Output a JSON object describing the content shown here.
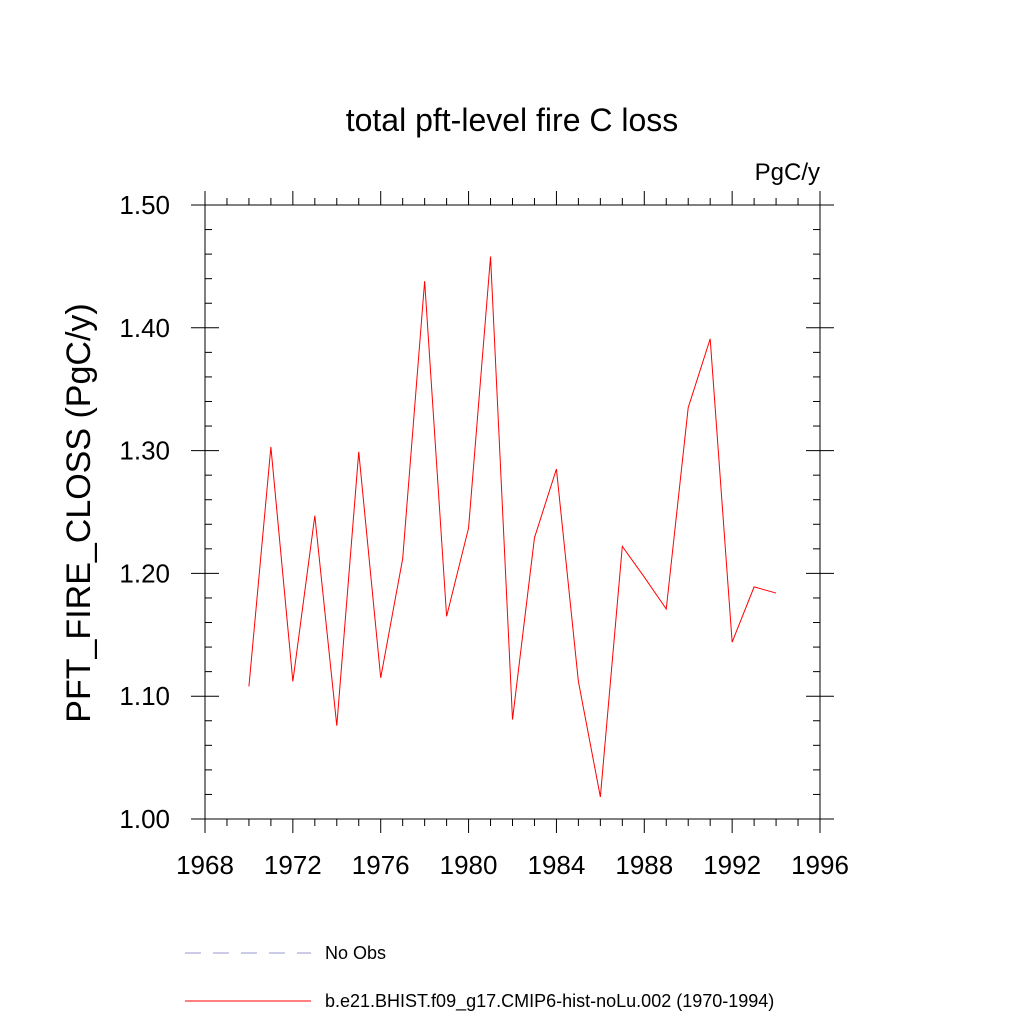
{
  "chart_data": {
    "type": "line",
    "title": "total pft-level fire C loss",
    "units_label": "PgC/y",
    "xlabel": "",
    "ylabel": "PFT_FIRE_CLOSS  (PgC/y)",
    "xlim": [
      1968,
      1996
    ],
    "ylim": [
      1.0,
      1.5
    ],
    "x_major_ticks": [
      1968,
      1972,
      1976,
      1980,
      1984,
      1988,
      1992,
      1996
    ],
    "x_minor_step": 1,
    "y_major_ticks": [
      1.0,
      1.1,
      1.2,
      1.3,
      1.4,
      1.5
    ],
    "y_tick_labels": [
      "1.00",
      "1.10",
      "1.20",
      "1.30",
      "1.40",
      "1.50"
    ],
    "y_minor_step": 0.02,
    "grid": false,
    "legend_position": "bottom-left",
    "series": [
      {
        "name": "No Obs",
        "color": "#9999cc",
        "style": "dashed",
        "x": [],
        "values": []
      },
      {
        "name": "b.e21.BHIST.f09_g17.CMIP6-hist-noLu.002 (1970-1994)",
        "color": "#ff0000",
        "style": "solid",
        "x": [
          1970,
          1971,
          1972,
          1973,
          1974,
          1975,
          1976,
          1977,
          1978,
          1979,
          1980,
          1981,
          1982,
          1983,
          1984,
          1985,
          1986,
          1987,
          1988,
          1989,
          1990,
          1991,
          1992,
          1993,
          1994
        ],
        "values": [
          1.108,
          1.303,
          1.112,
          1.247,
          1.076,
          1.299,
          1.115,
          1.212,
          1.438,
          1.165,
          1.237,
          1.458,
          1.081,
          1.229,
          1.285,
          1.112,
          1.018,
          1.222,
          1.197,
          1.171,
          1.335,
          1.391,
          1.144,
          1.189,
          1.184
        ]
      }
    ]
  }
}
